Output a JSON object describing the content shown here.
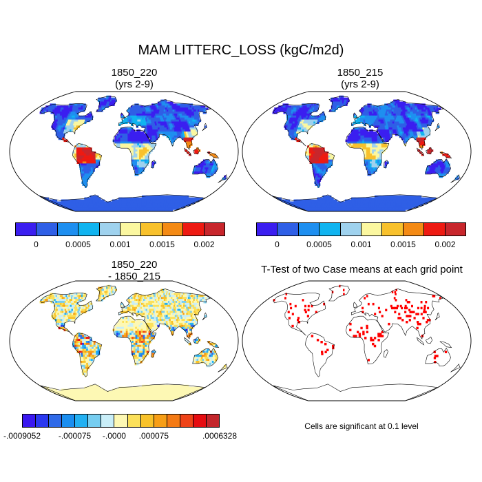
{
  "figure": {
    "title": "MAM LITTERC_LOSS (kgC/m2d)"
  },
  "panels": [
    {
      "line1": "1850_220",
      "line2": "(yrs 2-9)"
    },
    {
      "line1": "1850_215",
      "line2": "(yrs 2-9)"
    },
    {
      "line1": "1850_220",
      "line2": "- 1850_215"
    },
    {
      "line1": "T-Test of two Case means at each grid point",
      "line2": ""
    }
  ],
  "colorbar_top": {
    "colors": [
      "#3b1ef0",
      "#2f5fe6",
      "#1e8ff0",
      "#10b4f0",
      "#9fd2ee",
      "#fbf7a0",
      "#f8c12c",
      "#f48a14",
      "#ee1a12",
      "#c8262c"
    ],
    "labels": [
      "0",
      "0.0005",
      "0.001",
      "0.0015",
      "0.002"
    ]
  },
  "colorbar_diff": {
    "colors": [
      "#3a18f0",
      "#2a38f0",
      "#2f6ae8",
      "#1a8ef0",
      "#22b0f2",
      "#76cdf0",
      "#c9eef8",
      "#fdf8b4",
      "#fbe05a",
      "#f8c22a",
      "#f79e16",
      "#f47a14",
      "#ef4318",
      "#e60c10",
      "#c3262b"
    ],
    "labels": [
      "-.0009052",
      "-.000075",
      "-.0000",
      ".000075",
      ".0006328"
    ]
  },
  "ttest": {
    "note": "Cells are significant at 0.1 level"
  },
  "palette": {
    "ocean": "#ffffff",
    "coast": "#000000",
    "signif": "#ff0000"
  }
}
